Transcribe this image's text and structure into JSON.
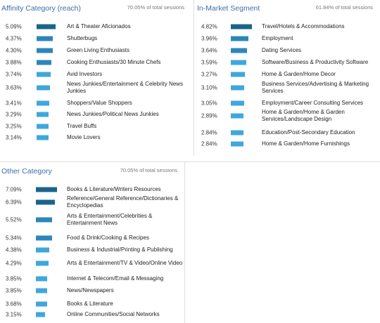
{
  "colors": {
    "title": "#3a6fa8",
    "bar_dark": "#17648c",
    "bar_mid": "#2d86bb",
    "bar_light": "#3fa7dd",
    "divider": "#dddddd"
  },
  "panels": {
    "affinity": {
      "title": "Affinity Category (reach)",
      "share": "70.05% of total sessions",
      "rows": [
        {
          "pct": "5.09%",
          "value": 5.09,
          "label": "Art & Theater Aficionados"
        },
        {
          "pct": "4.37%",
          "value": 4.37,
          "label": "Shutterbugs"
        },
        {
          "pct": "4.30%",
          "value": 4.3,
          "label": "Green Living Enthusiasts"
        },
        {
          "pct": "3.88%",
          "value": 3.88,
          "label": "Cooking Enthusiasts/30 Minute Chefs"
        },
        {
          "pct": "3.74%",
          "value": 3.74,
          "label": "Avid Investors"
        },
        {
          "pct": "3.63%",
          "value": 3.63,
          "label": "News Junkies/Entertainment & Celebrity News Junkies"
        },
        {
          "pct": "3.41%",
          "value": 3.41,
          "label": "Shoppers/Value Shoppers"
        },
        {
          "pct": "3.29%",
          "value": 3.29,
          "label": "News Junkies/Political News Junkies"
        },
        {
          "pct": "3.25%",
          "value": 3.25,
          "label": "Travel Buffs"
        },
        {
          "pct": "3.14%",
          "value": 3.14,
          "label": "Movie Lovers"
        }
      ]
    },
    "inmarket": {
      "title": "In-Market Segment",
      "share": "61.84% of total sessions",
      "rows": [
        {
          "pct": "4.82%",
          "value": 4.82,
          "label": "Travel/Hotels & Accommodations"
        },
        {
          "pct": "3.96%",
          "value": 3.96,
          "label": "Employment"
        },
        {
          "pct": "3.64%",
          "value": 3.64,
          "label": "Dating Services"
        },
        {
          "pct": "3.59%",
          "value": 3.59,
          "label": "Software/Business & Productivity Software"
        },
        {
          "pct": "3.27%",
          "value": 3.27,
          "label": "Home & Garden/Home Decor"
        },
        {
          "pct": "3.10%",
          "value": 3.1,
          "label": "Business Services/Advertising & Marketing Services"
        },
        {
          "pct": "3.05%",
          "value": 3.05,
          "label": "Employment/Career Consulting Services"
        },
        {
          "pct": "2.89%",
          "value": 2.89,
          "label": "Home & Garden/Home & Garden Services/Landscape Design"
        },
        {
          "pct": "2.84%",
          "value": 2.84,
          "label": "Education/Post-Secondary Education"
        },
        {
          "pct": "2.84%",
          "value": 2.84,
          "label": "Home & Garden/Home Furnishings"
        }
      ]
    },
    "other": {
      "title": "Other Category",
      "share": "70.05% of total sessions",
      "rows": [
        {
          "pct": "7.09%",
          "value": 7.09,
          "label": "Books & Literature/Writers Resources"
        },
        {
          "pct": "6.39%",
          "value": 6.39,
          "label": "Reference/General Reference/Dictionaries & Encyclopedias"
        },
        {
          "pct": "5.52%",
          "value": 5.52,
          "label": "Arts & Entertainment/Celebrities & Entertainment News"
        },
        {
          "pct": "5.34%",
          "value": 5.34,
          "label": "Food & Drink/Cooking & Recipes"
        },
        {
          "pct": "4.38%",
          "value": 4.38,
          "label": "Business & Industrial/Printing & Publishing"
        },
        {
          "pct": "4.29%",
          "value": 4.29,
          "label": "Arts & Entertainment/TV & Video/Online Video"
        },
        {
          "pct": "3.85%",
          "value": 3.85,
          "label": "Internet & Telecom/Email & Messaging"
        },
        {
          "pct": "3.85%",
          "value": 3.85,
          "label": "News/Newspapers"
        },
        {
          "pct": "3.68%",
          "value": 3.68,
          "label": "Books & Literature"
        },
        {
          "pct": "3.15%",
          "value": 3.15,
          "label": "Online Communities/Social Networks"
        }
      ]
    }
  }
}
